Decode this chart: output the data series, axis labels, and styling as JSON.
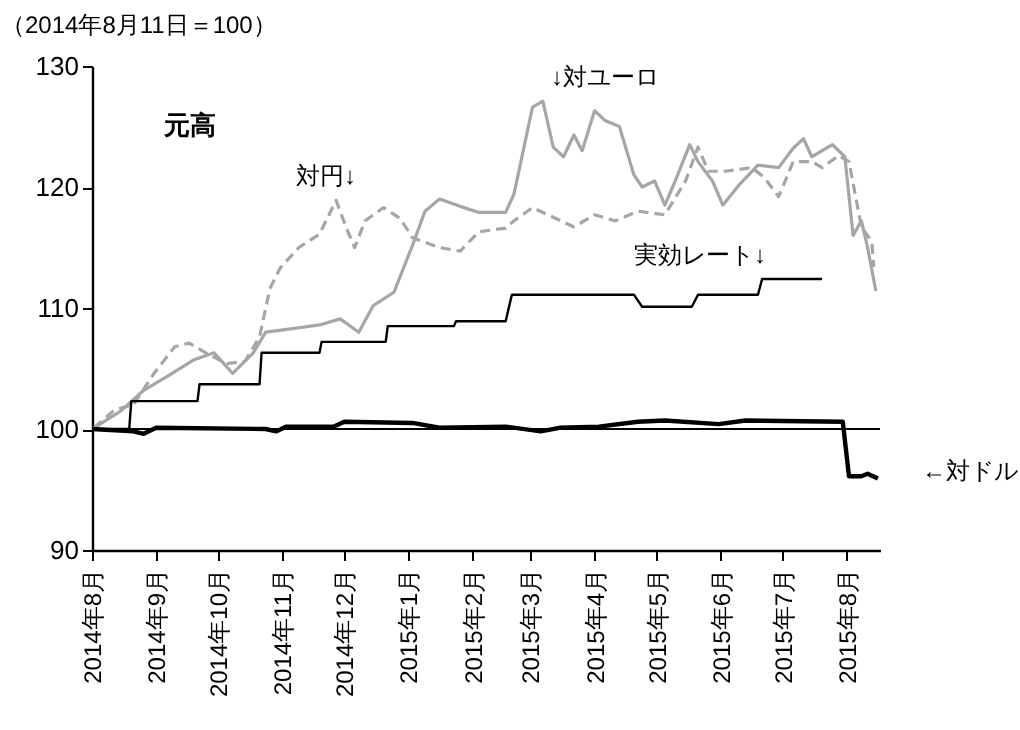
{
  "chart_data": {
    "type": "line",
    "ylabel": "（2014年8月11日＝100）",
    "xlim": [
      "2014-08-11",
      "2015-08-27"
    ],
    "ylim": [
      90,
      130
    ],
    "yticks": [
      90,
      100,
      110,
      120,
      130
    ],
    "xticks": [
      {
        "value": "2014-08-11",
        "label": "2014年8月"
      },
      {
        "value": "2014-09-11",
        "label": "2014年9月"
      },
      {
        "value": "2014-10-11",
        "label": "2014年10月"
      },
      {
        "value": "2014-11-11",
        "label": "2014年11月"
      },
      {
        "value": "2014-12-11",
        "label": "2014年12月"
      },
      {
        "value": "2015-01-11",
        "label": "2015年1月"
      },
      {
        "value": "2015-02-11",
        "label": "2015年2月"
      },
      {
        "value": "2015-03-11",
        "label": "2015年3月"
      },
      {
        "value": "2015-04-11",
        "label": "2015年4月"
      },
      {
        "value": "2015-05-11",
        "label": "2015年5月"
      },
      {
        "value": "2015-06-11",
        "label": "2015年6月"
      },
      {
        "value": "2015-07-11",
        "label": "2015年7月"
      },
      {
        "value": "2015-08-11",
        "label": "2015年8月"
      }
    ],
    "grid": false,
    "marker": "none",
    "series": [
      {
        "color": "#a6a6a6",
        "line_style": "solid",
        "x": [
          "2014-08-12",
          "2014-08-25",
          "2014-09-05",
          "2014-09-16",
          "2014-09-29",
          "2014-10-09",
          "2014-10-18",
          "2014-10-28",
          "2014-11-03",
          "2014-11-16",
          "2014-11-29",
          "2014-12-09",
          "2014-12-18",
          "2014-12-25",
          "2015-01-04",
          "2015-01-13",
          "2015-01-19",
          "2015-01-26",
          "2015-02-05",
          "2015-02-14",
          "2015-02-27",
          "2015-03-03",
          "2015-03-12",
          "2015-03-17",
          "2015-03-22",
          "2015-03-27",
          "2015-04-01",
          "2015-04-05",
          "2015-04-11",
          "2015-04-16",
          "2015-04-23",
          "2015-04-30",
          "2015-05-04",
          "2015-05-10",
          "2015-05-15",
          "2015-05-20",
          "2015-05-27",
          "2015-05-31",
          "2015-06-07",
          "2015-06-12",
          "2015-06-20",
          "2015-06-29",
          "2015-07-09",
          "2015-07-16",
          "2015-07-21",
          "2015-07-25",
          "2015-08-04",
          "2015-08-10",
          "2015-08-14",
          "2015-08-18",
          "2015-08-21",
          "2015-08-25"
        ],
        "values": [
          100.1,
          101.5,
          103.2,
          104.3,
          105.7,
          106.3,
          104.6,
          106.3,
          108,
          108.3,
          108.6,
          109.1,
          108,
          110.2,
          111.3,
          115.2,
          118,
          119,
          118.4,
          117.9,
          117.9,
          119.4,
          126.6,
          127.1,
          123.3,
          122.5,
          124.3,
          123,
          126.3,
          125.5,
          125,
          121,
          120,
          120.5,
          118.5,
          120.5,
          123.5,
          122.1,
          120.5,
          118.5,
          120.2,
          121.8,
          121.6,
          123.2,
          124,
          122.5,
          123.5,
          122.5,
          116,
          117.2,
          115,
          111.4
        ]
      },
      {
        "color": "#a6a6a6",
        "line_style": "dashed",
        "x": [
          "2014-08-12",
          "2014-08-22",
          "2014-08-31",
          "2014-09-10",
          "2014-09-20",
          "2014-09-27",
          "2014-10-05",
          "2014-10-15",
          "2014-10-24",
          "2014-10-31",
          "2014-11-05",
          "2014-11-10",
          "2014-11-19",
          "2014-11-29",
          "2014-12-07",
          "2014-12-12",
          "2014-12-16",
          "2014-12-21",
          "2014-12-30",
          "2015-01-07",
          "2015-01-13",
          "2015-01-26",
          "2015-02-05",
          "2015-02-14",
          "2015-02-27",
          "2015-03-03",
          "2015-03-12",
          "2015-03-22",
          "2015-04-01",
          "2015-04-11",
          "2015-04-21",
          "2015-05-02",
          "2015-05-15",
          "2015-05-25",
          "2015-05-31",
          "2015-06-05",
          "2015-06-13",
          "2015-06-26",
          "2015-07-02",
          "2015-07-09",
          "2015-07-16",
          "2015-07-25",
          "2015-07-30",
          "2015-08-07",
          "2015-08-12",
          "2015-08-18",
          "2015-08-23",
          "2015-08-24"
        ],
        "values": [
          100.1,
          101.6,
          102,
          104.6,
          106.8,
          107.1,
          106.3,
          105.4,
          105.6,
          107.6,
          111.6,
          113.3,
          115,
          116.1,
          118.9,
          116.6,
          115,
          117.2,
          118.3,
          117.4,
          115.8,
          115,
          114.7,
          116.3,
          116.6,
          117.2,
          118.3,
          117.5,
          116.7,
          117.7,
          117.2,
          118,
          117.7,
          120.5,
          123.3,
          121.3,
          121.3,
          121.6,
          120.8,
          119.2,
          122.1,
          122.1,
          121.6,
          122.6,
          122.1,
          116.7,
          115.5,
          113.4
        ]
      },
      {
        "color": "#000000",
        "line_style": "solid",
        "x": [
          "2014-08-11",
          "2014-08-29",
          "2014-08-30",
          "2014-10-01",
          "2014-10-02",
          "2014-10-31",
          "2014-11-01",
          "2014-11-29",
          "2014-11-30",
          "2014-12-31",
          "2015-01-01",
          "2015-02-02",
          "2015-02-03",
          "2015-02-27",
          "2015-03-02",
          "2015-04-30",
          "2015-05-04",
          "2015-05-28",
          "2015-05-31",
          "2015-06-29",
          "2015-07-01",
          "2015-07-30"
        ],
        "values": [
          100,
          100,
          102.3,
          102.3,
          103.7,
          103.7,
          106.3,
          106.3,
          107.2,
          107.2,
          108.5,
          108.5,
          108.9,
          108.9,
          111.1,
          111.1,
          110.1,
          110.1,
          111.1,
          111.1,
          112.4,
          112.4
        ]
      },
      {
        "color": "#000000",
        "line_style": "solid",
        "x": [
          "2014-08-11",
          "2014-08-31",
          "2014-09-05",
          "2014-09-11",
          "2014-11-03",
          "2014-11-08",
          "2014-11-13",
          "2014-12-06",
          "2014-12-11",
          "2015-01-13",
          "2015-01-26",
          "2015-02-27",
          "2015-03-16",
          "2015-03-25",
          "2015-04-13",
          "2015-05-02",
          "2015-05-15",
          "2015-06-10",
          "2015-06-23",
          "2015-08-09",
          "2015-08-12",
          "2015-08-18",
          "2015-08-21",
          "2015-08-26"
        ],
        "values": [
          100,
          99.8,
          99.6,
          100.1,
          100,
          99.8,
          100.2,
          100.2,
          100.6,
          100.5,
          100.1,
          100.2,
          99.8,
          100.1,
          100.2,
          100.6,
          100.7,
          100.4,
          100.7,
          100.6,
          96.1,
          96.1,
          96.3,
          95.9
        ]
      }
    ],
    "ref_lines": [
      {
        "axis": "y",
        "value": 100,
        "color": "#000000"
      }
    ],
    "annotations": [
      "元高",
      {
        "text": "対円↓",
        "x": "2014-12-07",
        "y": 118.9
      },
      {
        "text": "↓対ユーロ",
        "x": "2015-03-17",
        "y": 127.1
      },
      {
        "text": "実効レート↓",
        "x": "2015-07-01",
        "y": 112.4
      },
      {
        "text": "←対ドル",
        "x": "2015-08-26",
        "y": 95.9
      }
    ]
  }
}
